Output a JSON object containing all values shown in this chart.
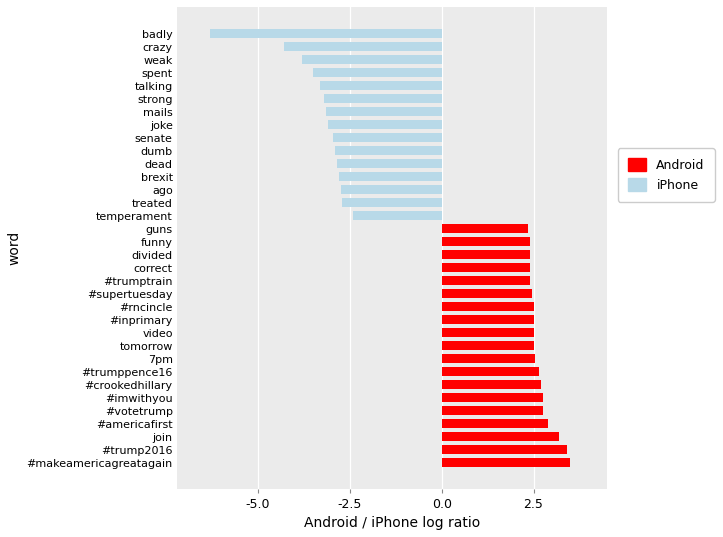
{
  "words": [
    "badly",
    "crazy",
    "weak",
    "spent",
    "talking",
    "strong",
    "mails",
    "joke",
    "senate",
    "dumb",
    "dead",
    "brexit",
    "ago",
    "treated",
    "temperament",
    "guns",
    "funny",
    "divided",
    "correct",
    "#trumptrain",
    "#supertuesday",
    "#rncincle",
    "#inprimary",
    "video",
    "tomorrow",
    "7pm",
    "#trumppence16",
    "#crookedhillary",
    "#imwithyou",
    "#votetrump",
    "#americafirst",
    "join",
    "#trump2016",
    "#makeamericagreatagain"
  ],
  "values": [
    3.5,
    3.4,
    3.2,
    2.9,
    2.75,
    2.75,
    2.7,
    2.65,
    2.55,
    2.5,
    2.5,
    2.5,
    2.5,
    2.45,
    2.4,
    2.4,
    2.4,
    2.4,
    2.35,
    -2.4,
    -2.7,
    -2.75,
    -2.8,
    -2.85,
    -2.9,
    -2.95,
    -3.1,
    -3.15,
    -3.2,
    -3.3,
    -3.5,
    -3.8,
    -4.3,
    -6.3
  ],
  "android_color": "#FF0000",
  "iphone_color": "#B8D9E8",
  "panel_bg": "#EBEBEB",
  "plot_bg": "#FFFFFF",
  "xlabel": "Android / iPhone log ratio",
  "ylabel": "word",
  "xlim": [
    -7.2,
    4.5
  ],
  "xticks": [
    -5.0,
    -2.5,
    0.0,
    2.5
  ],
  "xtick_labels": [
    "-5.0",
    "-2.5",
    "0.0",
    "2.5"
  ],
  "legend_android": "Android",
  "legend_iphone": "iPhone",
  "bar_height": 0.72,
  "label_fontsize": 8,
  "axis_label_fontsize": 10,
  "tick_fontsize": 9
}
